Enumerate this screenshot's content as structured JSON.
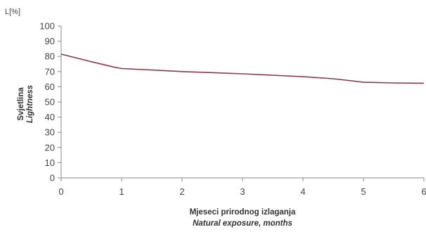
{
  "chart_data": {
    "type": "line",
    "y_unit_label": "L[%]",
    "ylabel": "Svjetlina",
    "ylabel_en": "Lightness",
    "xlabel": "Mjeseci prirodnog izlaganja",
    "xlabel_en": "Natural exposure, months",
    "xlim": [
      0,
      6
    ],
    "ylim": [
      0,
      100
    ],
    "x_ticks": [
      0,
      1,
      2,
      3,
      4,
      5,
      6
    ],
    "y_ticks": [
      0,
      10,
      20,
      30,
      40,
      50,
      60,
      70,
      80,
      90,
      100
    ],
    "grid": false,
    "line_color": "#8b3a4a",
    "series": [
      {
        "x": [
          0,
          0.5,
          0.87,
          1,
          1.5,
          2,
          2.5,
          3,
          3.5,
          4,
          4.5,
          5,
          5.5,
          6
        ],
        "values": [
          81.5,
          76.5,
          73,
          72,
          71,
          70,
          69.3,
          68.5,
          67.6,
          66.6,
          65.3,
          63,
          62.5,
          62.3
        ]
      }
    ]
  }
}
